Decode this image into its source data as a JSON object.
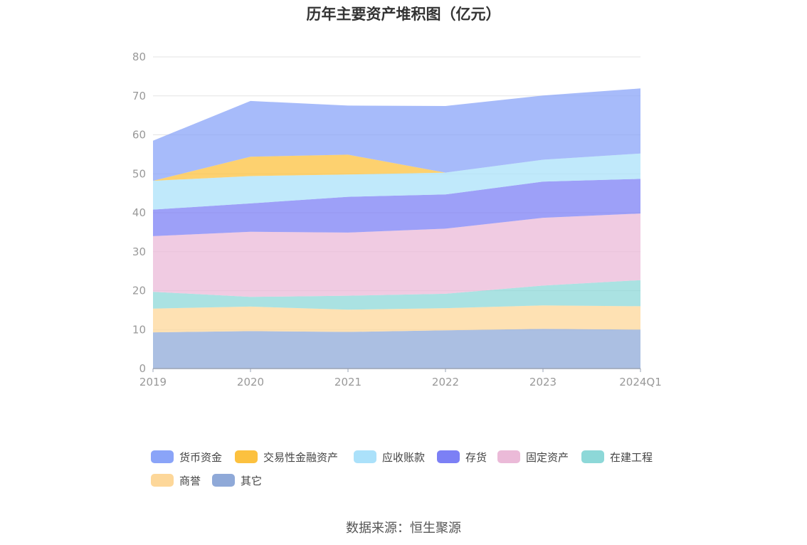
{
  "chart_data": {
    "type": "area",
    "stacked": true,
    "title": "历年主要资产堆积图（亿元）",
    "categories": [
      "2019",
      "2020",
      "2021",
      "2022",
      "2023",
      "2024Q1"
    ],
    "ylim": [
      0,
      80
    ],
    "yticks": [
      0,
      10,
      20,
      30,
      40,
      50,
      60,
      70,
      80
    ],
    "grid": true,
    "legend_position": "bottom",
    "series": [
      {
        "name": "其它",
        "color": "#8fa9d8",
        "values": [
          9.3,
          9.6,
          9.4,
          9.8,
          10.2,
          10.0
        ]
      },
      {
        "name": "商誉",
        "color": "#fdd799",
        "values": [
          6.1,
          6.3,
          5.7,
          5.7,
          6.0,
          6.0
        ]
      },
      {
        "name": "在建工程",
        "color": "#8dd8d8",
        "values": [
          4.3,
          2.5,
          3.6,
          3.7,
          5.1,
          6.7
        ]
      },
      {
        "name": "固定资产",
        "color": "#ebbad8",
        "values": [
          14.3,
          16.7,
          16.2,
          16.7,
          17.4,
          17.1
        ]
      },
      {
        "name": "存货",
        "color": "#7c80f5",
        "values": [
          6.8,
          7.3,
          9.2,
          8.8,
          9.3,
          8.9
        ]
      },
      {
        "name": "应收账款",
        "color": "#abe1fa",
        "values": [
          7.4,
          7.0,
          5.7,
          5.6,
          5.6,
          6.5
        ]
      },
      {
        "name": "交易性金融资产",
        "color": "#fcc13f",
        "values": [
          0.0,
          5.0,
          5.1,
          0.0,
          0.0,
          0.0
        ]
      },
      {
        "name": "货币资金",
        "color": "#8aa4f8",
        "values": [
          10.3,
          14.3,
          12.6,
          17.1,
          16.5,
          16.7
        ]
      }
    ]
  },
  "legend_order": [
    "货币资金",
    "交易性金融资产",
    "应收账款",
    "存货",
    "固定资产",
    "在建工程",
    "商誉",
    "其它"
  ],
  "source": "数据来源：恒生聚源"
}
